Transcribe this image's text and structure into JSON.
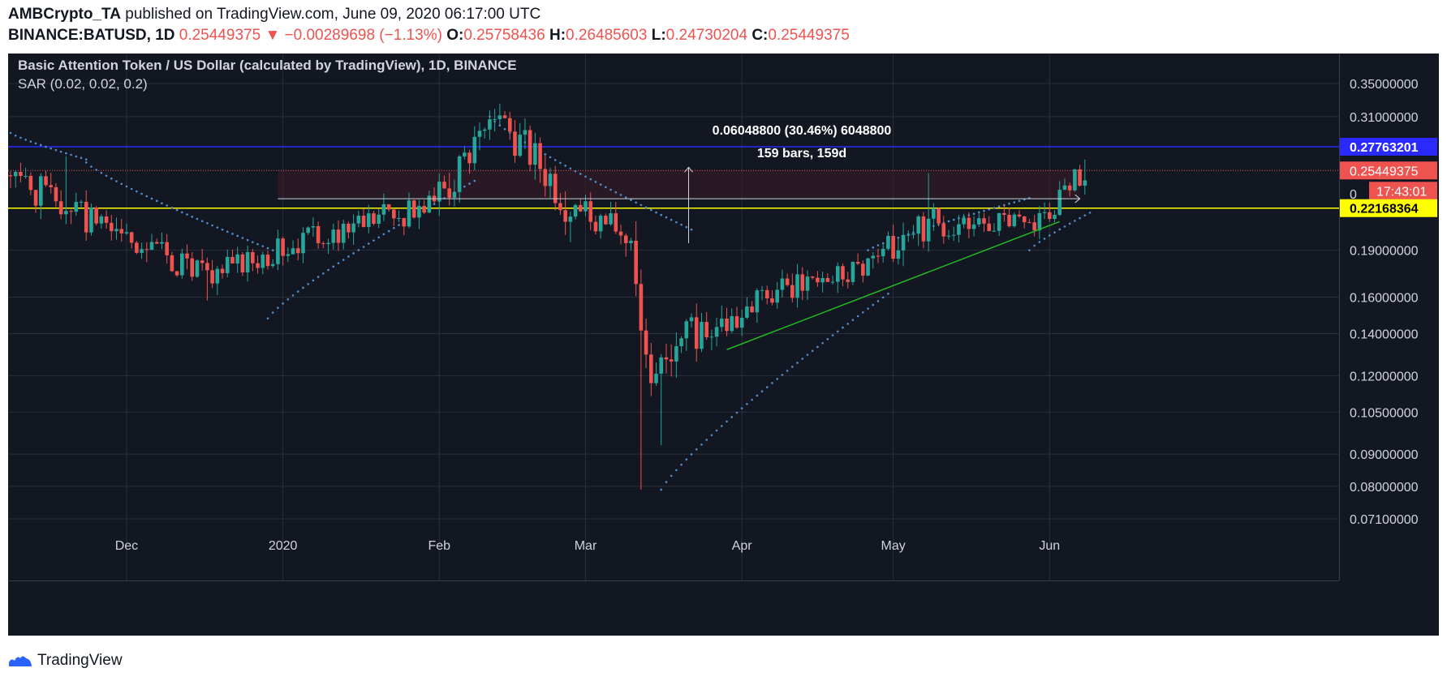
{
  "header": {
    "author": "AMBCrypto_TA",
    "published_text": "published on TradingView.com, June 09, 2020 06:17:00 UTC",
    "symbol": "BINANCE:BATUSD, 1D",
    "price": "0.25449375",
    "change_arrow": "▼",
    "change": "−0.00289698 (−1.13%)",
    "o_label": "O:",
    "o_value": "0.25758436",
    "h_label": "H:",
    "h_value": "0.26485603",
    "l_label": "L:",
    "l_value": "0.24730204",
    "c_label": "C:",
    "c_value": "0.25449375"
  },
  "legend": {
    "title": "Basic Attention Token / US Dollar (calculated by TradingView), 1D, BINANCE",
    "indicator": "SAR (0.02, 0.02, 0.2)"
  },
  "measure": {
    "line1": "0.06048800 (30.46%) 6048800",
    "line2": "159 bars, 159d"
  },
  "badges": {
    "blue_level": "0.27763201",
    "price_level": "0.25449375",
    "countdown": "17:43:01",
    "yellow_level": "0.22168364",
    "hidden_prefix": "0"
  },
  "footer": {
    "brand": "TradingView",
    "icon": "tradingview-logo-icon"
  },
  "colors": {
    "background": "#131722",
    "up": "#26a69a",
    "down": "#ef5350",
    "sar": "#4f8fcf",
    "resistance": "#2a2aff",
    "support": "#ffff00",
    "trendline": "#22bb22"
  },
  "chart_data": {
    "type": "candlestick",
    "title": "Basic Attention Token / US Dollar (calculated by TradingView), 1D, BINANCE",
    "x_tick_labels": [
      "Dec",
      "2020",
      "Feb",
      "Mar",
      "Apr",
      "May",
      "Jun"
    ],
    "y_tick_labels": [
      "0.35000000",
      "0.31000000",
      "0.19000000",
      "0.16000000",
      "0.14000000",
      "0.12000000",
      "0.10500000",
      "0.09000000",
      "0.08000000",
      "0.07100000"
    ],
    "y_scale": "log",
    "ylim": [
      0.068,
      0.385
    ],
    "grid": true,
    "horizontal_levels": [
      {
        "name": "resistance",
        "value": 0.27763201,
        "color": "#2a2aff"
      },
      {
        "name": "last",
        "value": 0.25449375,
        "color": "#ef5350"
      },
      {
        "name": "support",
        "value": 0.22168364,
        "color": "#ffff00"
      }
    ],
    "trendline": {
      "from": [
        "2020-03-29",
        0.132
      ],
      "to": [
        "2020-06-03",
        0.211
      ]
    },
    "measurement": {
      "from_date": "2019-12-31",
      "to_date": "2020-06-07",
      "price_change": 0.060488,
      "percent": 30.46,
      "bars": 159
    },
    "candle_ranges": [
      {
        "from": "2019-11-08",
        "to": "2019-11-25",
        "start": 0.25,
        "end": 0.214,
        "wobble": 0.014,
        "seed": 1,
        "spike": [
          [
            "2019-11-19",
            0.268
          ]
        ]
      },
      {
        "from": "2019-11-25",
        "to": "2019-12-18",
        "start": 0.214,
        "end": 0.172,
        "wobble": 0.011,
        "seed": 2,
        "spike": [
          [
            "2019-12-17",
            0.158
          ]
        ]
      },
      {
        "from": "2019-12-18",
        "to": "2020-01-12",
        "start": 0.172,
        "end": 0.205,
        "wobble": 0.009,
        "seed": 3
      },
      {
        "from": "2020-01-12",
        "to": "2020-02-01",
        "start": 0.205,
        "end": 0.224,
        "wobble": 0.012,
        "seed": 4
      },
      {
        "from": "2020-02-01",
        "to": "2020-02-14",
        "start": 0.224,
        "end": 0.305,
        "wobble": 0.018,
        "seed": 5,
        "spike": [
          [
            "2020-02-13",
            0.325
          ]
        ]
      },
      {
        "from": "2020-02-14",
        "to": "2020-02-28",
        "start": 0.305,
        "end": 0.225,
        "wobble": 0.02,
        "seed": 6
      },
      {
        "from": "2020-02-28",
        "to": "2020-03-11",
        "start": 0.225,
        "end": 0.198,
        "wobble": 0.012,
        "seed": 7
      },
      {
        "from": "2020-03-11",
        "to": "2020-03-14",
        "start": 0.198,
        "end": 0.12,
        "wobble": 0.02,
        "seed": 8,
        "spike": [
          [
            "2020-03-12",
            0.079
          ]
        ]
      },
      {
        "from": "2020-03-14",
        "to": "2020-03-26",
        "start": 0.12,
        "end": 0.145,
        "wobble": 0.01,
        "seed": 9,
        "spike": [
          [
            "2020-03-16",
            0.093
          ]
        ]
      },
      {
        "from": "2020-03-26",
        "to": "2020-04-30",
        "start": 0.145,
        "end": 0.186,
        "wobble": 0.009,
        "seed": 10
      },
      {
        "from": "2020-04-30",
        "to": "2020-05-10",
        "start": 0.186,
        "end": 0.215,
        "wobble": 0.014,
        "seed": 11,
        "spike": [
          [
            "2020-05-08",
            0.252
          ]
        ]
      },
      {
        "from": "2020-05-10",
        "to": "2020-05-31",
        "start": 0.205,
        "end": 0.212,
        "wobble": 0.009,
        "seed": 12
      },
      {
        "from": "2020-05-31",
        "to": "2020-06-09",
        "start": 0.212,
        "end": 0.2545,
        "wobble": 0.011,
        "seed": 13,
        "spike": [
          [
            "2020-06-08",
            0.2649
          ]
        ]
      }
    ],
    "sar_segments": [
      {
        "from": "2019-11-08",
        "to": "2019-11-23",
        "start": 0.292,
        "end": 0.265
      },
      {
        "from": "2019-11-23",
        "to": "2019-12-30",
        "start": 0.262,
        "end": 0.19
      },
      {
        "from": "2019-12-29",
        "to": "2020-02-08",
        "start": 0.148,
        "end": 0.245
      },
      {
        "from": "2020-02-11",
        "to": "2020-03-22",
        "start": 0.31,
        "end": 0.205
      },
      {
        "from": "2020-03-16",
        "to": "2020-04-30",
        "start": 0.079,
        "end": 0.162
      },
      {
        "from": "2020-04-26",
        "to": "2020-05-28",
        "start": 0.19,
        "end": 0.23
      },
      {
        "from": "2020-05-28",
        "to": "2020-06-09",
        "start": 0.19,
        "end": 0.218
      }
    ]
  }
}
